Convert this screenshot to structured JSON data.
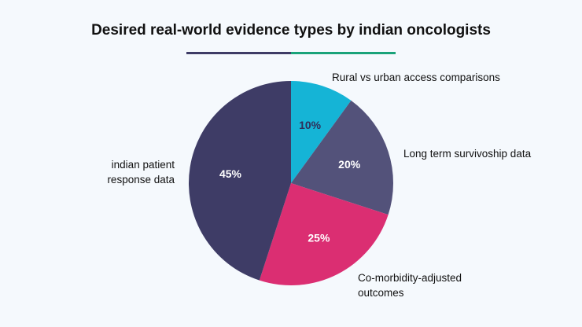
{
  "chart_data": {
    "type": "pie",
    "title": "Desired real-world evidence types by indian oncologists",
    "slices": [
      {
        "label": "Rural vs urban access comparisons",
        "value": 10,
        "display": "10%",
        "color": "#15b4d6",
        "text_color": "#2f2f5a"
      },
      {
        "label": "Long term survivoship data",
        "value": 20,
        "display": "20%",
        "color": "#53527a",
        "text_color": "#ffffff"
      },
      {
        "label": "Co-morbidity-adjusted outcomes",
        "value": 25,
        "display": "25%",
        "color": "#db2e72",
        "text_color": "#ffffff"
      },
      {
        "label": "indian patient response data",
        "value": 45,
        "display": "45%",
        "color": "#3e3c66",
        "text_color": "#ffffff"
      }
    ]
  },
  "decor": {
    "underline_colors": [
      "#3e3c66",
      "#1aa37a"
    ]
  }
}
